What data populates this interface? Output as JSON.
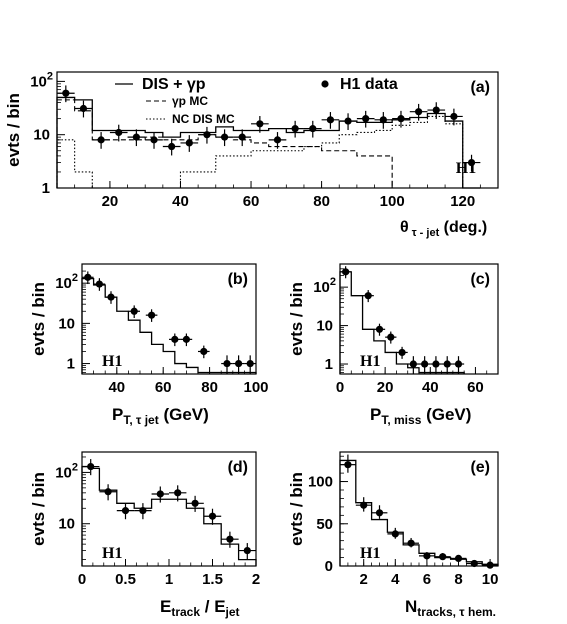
{
  "chart_data": [
    {
      "id": "a",
      "type": "line",
      "panel_label": "(a)",
      "experiment_label": "H1",
      "xlabel_main": "θ",
      "xlabel_sub": "τ - jet",
      "xlabel_unit": "(deg.)",
      "ylabel": "evts / bin",
      "x_scale": "linear",
      "y_scale": "log",
      "xlim": [
        5,
        130
      ],
      "ylim": [
        1,
        150
      ],
      "x_ticks": [
        20,
        40,
        60,
        80,
        100,
        120
      ],
      "y_ticks": [
        {
          "v": 1,
          "t": "1"
        },
        {
          "v": 10,
          "t": "10"
        },
        {
          "v": 100,
          "t": "10",
          "sup": "2"
        }
      ],
      "legend": {
        "sum": "DIS + γp",
        "data": "H1 data",
        "gp": "γp MC",
        "nc": "NC DIS MC"
      },
      "edges": [
        5,
        10,
        15,
        20,
        25,
        30,
        35,
        40,
        45,
        50,
        55,
        60,
        65,
        70,
        75,
        80,
        85,
        90,
        95,
        100,
        105,
        110,
        115,
        120,
        125
      ],
      "series": [
        {
          "role": "sum",
          "style": "solid",
          "values": [
            50,
            45,
            12,
            12,
            12,
            11,
            9,
            11,
            11,
            14,
            12,
            12,
            13,
            11,
            12,
            12,
            18,
            17,
            17,
            19,
            21,
            25,
            18,
            1
          ]
        },
        {
          "role": "gp",
          "style": "dashed",
          "values": [
            45,
            28,
            8,
            8,
            8,
            9,
            8,
            8,
            10,
            9,
            8,
            7,
            6,
            6,
            6,
            5,
            5,
            4,
            4,
            1,
            1,
            1,
            1,
            1
          ]
        },
        {
          "role": "nc",
          "style": "dotted",
          "values": [
            8,
            2,
            1,
            1,
            1,
            1,
            1,
            2,
            2,
            4,
            4,
            5,
            5,
            5,
            6,
            7,
            10,
            11,
            12,
            15,
            17,
            22,
            16,
            1
          ]
        }
      ],
      "data": {
        "x": [
          7.5,
          12.5,
          17.5,
          22.5,
          27.5,
          32.5,
          37.5,
          42.5,
          47.5,
          52.5,
          57.5,
          62.5,
          67.5,
          72.5,
          77.5,
          82.5,
          87.5,
          92.5,
          97.5,
          102.5,
          107.5,
          112.5,
          117.5
        ],
        "y": [
          60,
          31,
          8,
          11,
          9,
          8,
          6,
          7,
          10,
          9,
          9,
          16,
          8,
          13,
          13,
          19,
          18,
          20,
          19,
          20,
          27,
          29,
          22
        ],
        "xerr": 2.5,
        "extra": [
          {
            "x": 122.5,
            "y": 3,
            "xerr": 2.5
          }
        ]
      }
    },
    {
      "id": "b",
      "type": "line",
      "panel_label": "(b)",
      "experiment_label": "H1",
      "xlabel_main": "P",
      "xlabel_sub": "T, τ jet",
      "xlabel_unit": "(GeV)",
      "ylabel": "evts / bin",
      "x_scale": "linear",
      "y_scale": "log",
      "xlim": [
        25,
        100
      ],
      "ylim": [
        0.55,
        300
      ],
      "x_ticks": [
        40,
        60,
        80,
        100
      ],
      "y_ticks": [
        {
          "v": 1,
          "t": "1"
        },
        {
          "v": 10,
          "t": "10"
        },
        {
          "v": 100,
          "t": "10",
          "sup": "2"
        }
      ],
      "edges": [
        25,
        30,
        35,
        40,
        45,
        50,
        55,
        60,
        65,
        70,
        75,
        80,
        85,
        90,
        95,
        100
      ],
      "series": [
        {
          "role": "sum",
          "style": "solid",
          "values": [
            130,
            90,
            45,
            20,
            12,
            6,
            3,
            2,
            1,
            0.8,
            0.6,
            0.6,
            0.6,
            0.6,
            0.6
          ]
        }
      ],
      "data": {
        "x": [
          27.5,
          32.5,
          37.5,
          47.5,
          55,
          65,
          70,
          77.5,
          87.5,
          92.5,
          97.5
        ],
        "xerr": [
          2.5,
          2.5,
          2.5,
          2.5,
          2.5,
          2.5,
          2.5,
          2.5,
          2.5,
          2.5,
          2.5
        ],
        "y": [
          140,
          95,
          45,
          20,
          16,
          4,
          4,
          2,
          1,
          1,
          1
        ]
      }
    },
    {
      "id": "c",
      "type": "line",
      "panel_label": "(c)",
      "experiment_label": "H1",
      "xlabel_main": "P",
      "xlabel_sub": "T, miss",
      "xlabel_unit": "(GeV)",
      "ylabel": "evts / bin",
      "x_scale": "linear",
      "y_scale": "log",
      "xlim": [
        0,
        70
      ],
      "ylim": [
        0.55,
        400
      ],
      "x_ticks": [
        0,
        20,
        40,
        60
      ],
      "y_ticks": [
        {
          "v": 1,
          "t": "1"
        },
        {
          "v": 10,
          "t": "10"
        },
        {
          "v": 100,
          "t": "10",
          "sup": "2"
        }
      ],
      "edges": [
        0,
        5,
        10,
        15,
        20,
        25,
        30,
        35,
        40,
        45,
        50,
        55
      ],
      "series": [
        {
          "role": "sum",
          "style": "solid",
          "values": [
            250,
            60,
            8,
            4,
            2,
            1,
            0.8,
            0.6,
            0.6,
            0.6,
            0.6
          ]
        }
      ],
      "data": {
        "x": [
          2.5,
          12.5,
          17.5,
          22.5,
          27.5,
          32.5,
          37.5,
          42.5,
          47.5,
          52.5
        ],
        "xerr": 2.5,
        "y": [
          250,
          60,
          8,
          5,
          2,
          1,
          1,
          1,
          1,
          1
        ]
      }
    },
    {
      "id": "d",
      "type": "line",
      "panel_label": "(d)",
      "experiment_label": "H1",
      "xlabel_main": "E",
      "xlabel_sub": "track",
      "xlabel_main2": " / E",
      "xlabel_sub2": "jet",
      "ylabel": "evts / bin",
      "x_scale": "linear",
      "y_scale": "log",
      "xlim": [
        0,
        2
      ],
      "ylim": [
        1.5,
        250
      ],
      "x_ticks": [
        0,
        0.5,
        1,
        1.5,
        2
      ],
      "x_tick_labels": [
        "0",
        "0.5",
        "1",
        "1.5",
        "2"
      ],
      "y_ticks": [
        {
          "v": 10,
          "t": "10"
        },
        {
          "v": 100,
          "t": "10",
          "sup": "2"
        }
      ],
      "edges": [
        0,
        0.1,
        0.2,
        0.3,
        0.4,
        0.5,
        0.6,
        0.7,
        0.8,
        0.9,
        1.0,
        1.1,
        1.2,
        1.3,
        1.4,
        1.5,
        1.6,
        1.7,
        1.8,
        1.9,
        2.0
      ],
      "series": [
        {
          "role": "sum",
          "style": "solid",
          "values": [
            130,
            120,
            45,
            45,
            25,
            25,
            20,
            20,
            30,
            30,
            30,
            30,
            20,
            20,
            10,
            10,
            4,
            4,
            2,
            2
          ]
        }
      ],
      "data": {
        "x": [
          0.1,
          0.3,
          0.5,
          0.7,
          0.9,
          1.1,
          1.3,
          1.5,
          1.7,
          1.9
        ],
        "xerr": 0.1,
        "y": [
          130,
          42,
          18,
          18,
          38,
          40,
          25,
          14,
          5,
          3
        ]
      }
    },
    {
      "id": "e",
      "type": "line",
      "panel_label": "(e)",
      "experiment_label": "H1",
      "xlabel_main": "N",
      "xlabel_sub": "tracks, τ hem.",
      "ylabel": "evts / bin",
      "x_scale": "linear",
      "y_scale": "linear",
      "xlim": [
        0.5,
        10.5
      ],
      "ylim": [
        0,
        135
      ],
      "x_ticks": [
        2,
        4,
        6,
        8,
        10
      ],
      "y_ticks": [
        {
          "v": 0,
          "t": "0"
        },
        {
          "v": 50,
          "t": "50"
        },
        {
          "v": 100,
          "t": "100"
        }
      ],
      "edges": [
        0.5,
        1.5,
        2.5,
        3.5,
        4.5,
        5.5,
        6.5,
        7.5,
        8.5,
        9.5,
        10.5
      ],
      "series": [
        {
          "role": "sum",
          "style": "solid",
          "values": [
            125,
            75,
            55,
            40,
            25,
            15,
            10,
            8,
            5,
            2
          ]
        }
      ],
      "data": {
        "x": [
          1,
          2,
          3,
          4,
          5,
          6,
          7,
          8,
          9,
          10
        ],
        "xerr": 0.5,
        "y": [
          120,
          72,
          63,
          38,
          27,
          12,
          11,
          9,
          3,
          1
        ]
      }
    }
  ]
}
